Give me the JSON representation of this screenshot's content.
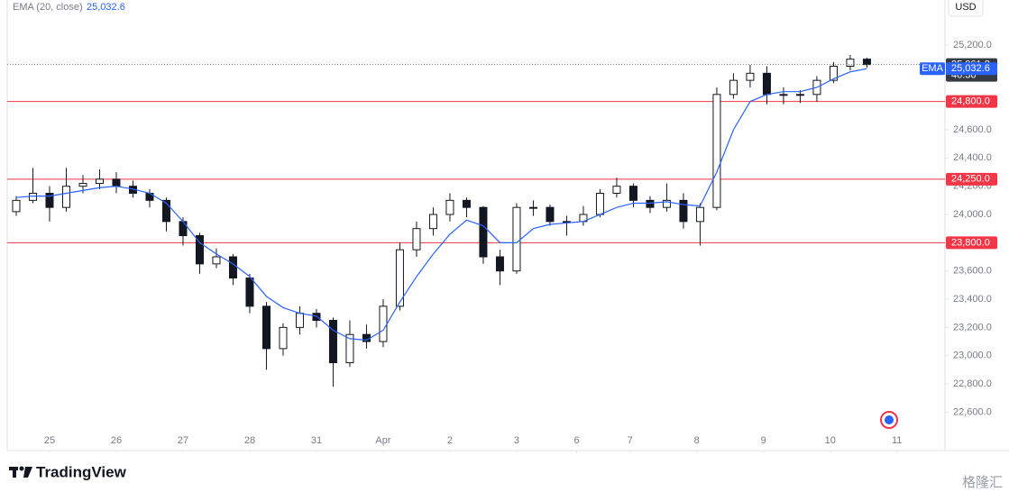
{
  "chart_data": {
    "type": "candlestick",
    "indicator_label": "EMA (20, close)",
    "currency": "USD",
    "x": [
      -2,
      -1,
      0,
      1,
      2,
      3,
      4,
      5,
      6,
      7,
      8,
      9,
      10,
      11,
      12,
      13,
      14,
      15,
      16,
      17,
      18,
      19,
      20,
      21,
      22,
      23,
      24,
      25,
      26,
      27,
      28,
      29,
      30,
      31,
      32,
      33,
      34,
      35,
      36,
      37,
      38,
      39,
      40,
      41,
      42,
      43,
      44,
      45,
      46,
      47,
      48,
      49
    ],
    "open": [
      24020,
      24100,
      24150,
      24050,
      24200,
      24220,
      24250,
      24200,
      24150,
      24100,
      23950,
      23850,
      23650,
      23700,
      23550,
      23350,
      23050,
      23200,
      23300,
      23250,
      22950,
      23150,
      23100,
      23350,
      23750,
      23900,
      24000,
      24100,
      24050,
      23700,
      23600,
      24050,
      24050,
      23950,
      23950,
      24000,
      24150,
      24200,
      24100,
      24050,
      24100,
      23950,
      24050,
      24850,
      24950,
      25000,
      24850,
      24850,
      24850,
      24950,
      25050,
      25100
    ],
    "high": [
      24130,
      24330,
      24200,
      24330,
      24280,
      24320,
      24300,
      24240,
      24180,
      24120,
      23980,
      23870,
      23760,
      23720,
      23580,
      23380,
      23230,
      23350,
      23330,
      23270,
      23250,
      23220,
      23400,
      23800,
      23950,
      24050,
      24150,
      24120,
      24060,
      23750,
      24080,
      24100,
      24070,
      23990,
      24060,
      24180,
      24260,
      24220,
      24130,
      24220,
      24150,
      24080,
      24900,
      25000,
      25060,
      25050,
      24900,
      24880,
      24980,
      25080,
      25130,
      25110
    ],
    "low": [
      23990,
      24080,
      23950,
      24020,
      24150,
      24180,
      24150,
      24120,
      24050,
      23880,
      23780,
      23580,
      23620,
      23500,
      23300,
      22900,
      23000,
      23150,
      23200,
      22780,
      22920,
      23050,
      23060,
      23320,
      23700,
      23850,
      23950,
      23980,
      23650,
      23500,
      23580,
      23990,
      23920,
      23850,
      23920,
      23980,
      24120,
      24050,
      24010,
      24020,
      23900,
      23780,
      24030,
      24820,
      24900,
      24780,
      24780,
      24790,
      24800,
      24930,
      25020,
      25040
    ],
    "close": [
      24100,
      24150,
      24050,
      24200,
      24220,
      24250,
      24200,
      24150,
      24100,
      23950,
      23850,
      23650,
      23700,
      23550,
      23350,
      23050,
      23200,
      23300,
      23250,
      22950,
      23150,
      23100,
      23350,
      23750,
      23900,
      24000,
      24100,
      24050,
      23700,
      23600,
      24050,
      24050,
      23950,
      23950,
      24000,
      24150,
      24200,
      24100,
      24050,
      24100,
      23950,
      24050,
      24850,
      24950,
      25000,
      24850,
      24850,
      24850,
      24950,
      25050,
      25100,
      25061.8
    ],
    "up_color": "#ffffff",
    "down_color": "#131722",
    "ema": {
      "name": "EMA",
      "color": "#2962ff",
      "last": 25032.6,
      "last_label": "25,032.6",
      "values": [
        24120,
        24130,
        24130,
        24150,
        24170,
        24190,
        24200,
        24180,
        24150,
        24080,
        23950,
        23800,
        23720,
        23650,
        23560,
        23420,
        23340,
        23300,
        23280,
        23180,
        23120,
        23110,
        23180,
        23380,
        23560,
        23720,
        23860,
        23960,
        23920,
        23800,
        23800,
        23900,
        23930,
        23940,
        23950,
        24000,
        24050,
        24080,
        24080,
        24090,
        24070,
        24060,
        24300,
        24600,
        24800,
        24850,
        24870,
        24870,
        24900,
        24960,
        25010,
        25032.6
      ]
    },
    "last_price": {
      "value": 25061.8,
      "label": "25,061.8",
      "countdown": "40:36"
    },
    "levels": [
      {
        "value": 24800,
        "label": "24,800.0"
      },
      {
        "value": 24250,
        "label": "24,250.0"
      },
      {
        "value": 23800,
        "label": "23,800.0"
      }
    ],
    "level_color": "#f23645",
    "ylim": [
      22328,
      25519
    ],
    "yticks": [
      {
        "value": 22600,
        "label": "22,600.0"
      },
      {
        "value": 22800,
        "label": "22,800.0"
      },
      {
        "value": 23000,
        "label": "23,000.0"
      },
      {
        "value": 23200,
        "label": "23,200.0"
      },
      {
        "value": 23400,
        "label": "23,400.0"
      },
      {
        "value": 23600,
        "label": "23,600.0"
      },
      {
        "value": 24000,
        "label": "24,000.0"
      },
      {
        "value": 24200,
        "label": "24,200.0"
      },
      {
        "value": 24400,
        "label": "24,400.0"
      },
      {
        "value": 24600,
        "label": "24,600.0"
      },
      {
        "value": 25200,
        "label": "25,200.0"
      }
    ],
    "xlim": [
      -2.54,
      53.68
    ],
    "xticks": [
      {
        "value": 0,
        "label": "25"
      },
      {
        "value": 4,
        "label": "26"
      },
      {
        "value": 8,
        "label": "27"
      },
      {
        "value": 12,
        "label": "28"
      },
      {
        "value": 16,
        "label": "31"
      },
      {
        "value": 20,
        "label": "Apr"
      },
      {
        "value": 24,
        "label": "2"
      },
      {
        "value": 28,
        "label": "3"
      },
      {
        "value": 31.6,
        "label": "6"
      },
      {
        "value": 34.8,
        "label": "7"
      },
      {
        "value": 38.8,
        "label": "8"
      },
      {
        "value": 42.8,
        "label": "9"
      },
      {
        "value": 46.8,
        "label": "10"
      },
      {
        "value": 50.8,
        "label": "11"
      }
    ],
    "grid": false
  },
  "brand": "TradingView",
  "watermark": "格隆汇"
}
